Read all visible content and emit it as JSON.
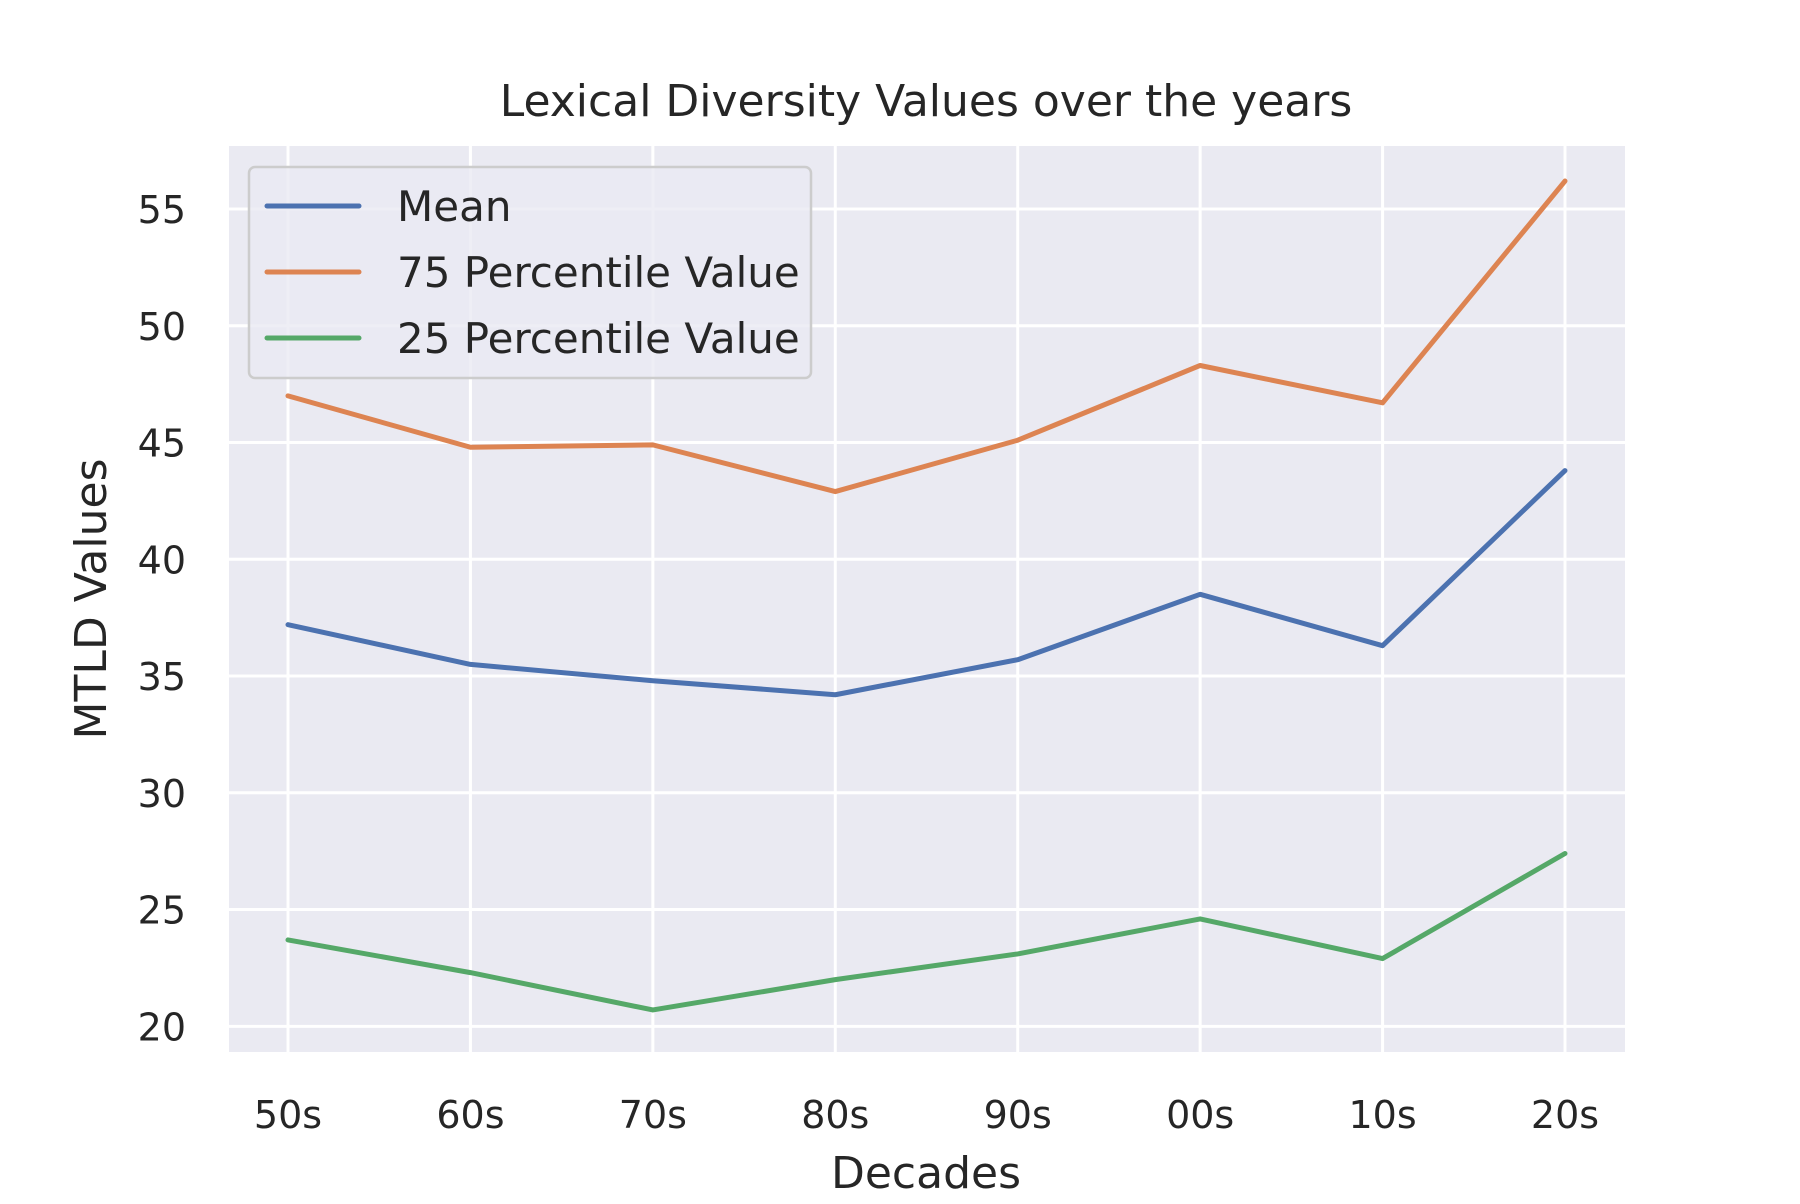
{
  "chart_data": {
    "type": "line",
    "title": "Lexical Diversity Values over the years",
    "xlabel": "Decades",
    "ylabel": "MTLD Values",
    "categories": [
      "50s",
      "60s",
      "70s",
      "80s",
      "90s",
      "00s",
      "10s",
      "20s"
    ],
    "yticks": [
      20,
      25,
      30,
      35,
      40,
      45,
      50,
      55
    ],
    "ylim": [
      18.9,
      57.7
    ],
    "grid": true,
    "legend_position": "top-left",
    "background_color": "#EAEAF2",
    "grid_color": "#FFFFFF",
    "series": [
      {
        "name": "Mean",
        "color": "#4C72B0",
        "values": [
          37.2,
          35.5,
          34.8,
          34.2,
          35.7,
          38.5,
          36.3,
          43.8
        ]
      },
      {
        "name": "75 Percentile Value",
        "color": "#DD8452",
        "values": [
          47.0,
          44.8,
          44.9,
          42.9,
          45.1,
          48.3,
          46.7,
          56.2
        ]
      },
      {
        "name": "25 Percentile Value",
        "color": "#55A868",
        "values": [
          23.7,
          22.3,
          20.7,
          22.0,
          23.1,
          24.6,
          22.9,
          27.4
        ]
      }
    ]
  }
}
